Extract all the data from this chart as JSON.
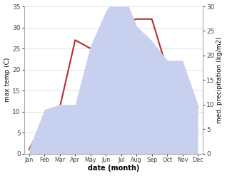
{
  "months": [
    "Jan",
    "Feb",
    "Mar",
    "Apr",
    "May",
    "Jun",
    "Jul",
    "Aug",
    "Sep",
    "Oct",
    "Nov",
    "Dec"
  ],
  "temperature": [
    1,
    8,
    11,
    27,
    25,
    31,
    31,
    32,
    32,
    20,
    13,
    11
  ],
  "precipitation": [
    1,
    9,
    10,
    10,
    22,
    29,
    34,
    26,
    23,
    19,
    19,
    10
  ],
  "temp_color": "#b03030",
  "precip_fill_color": "#c8d0f0",
  "temp_ylim": [
    0,
    35
  ],
  "precip_ylim": [
    0,
    30
  ],
  "temp_yticks": [
    0,
    5,
    10,
    15,
    20,
    25,
    30,
    35
  ],
  "precip_yticks": [
    0,
    5,
    10,
    15,
    20,
    25,
    30
  ],
  "xlabel": "date (month)",
  "ylabel_left": "max temp (C)",
  "ylabel_right": "med. precipitation (kg/m2)",
  "bg_color": "#ffffff",
  "grid_color": "#d8d8d8",
  "spine_color": "#aaaaaa"
}
